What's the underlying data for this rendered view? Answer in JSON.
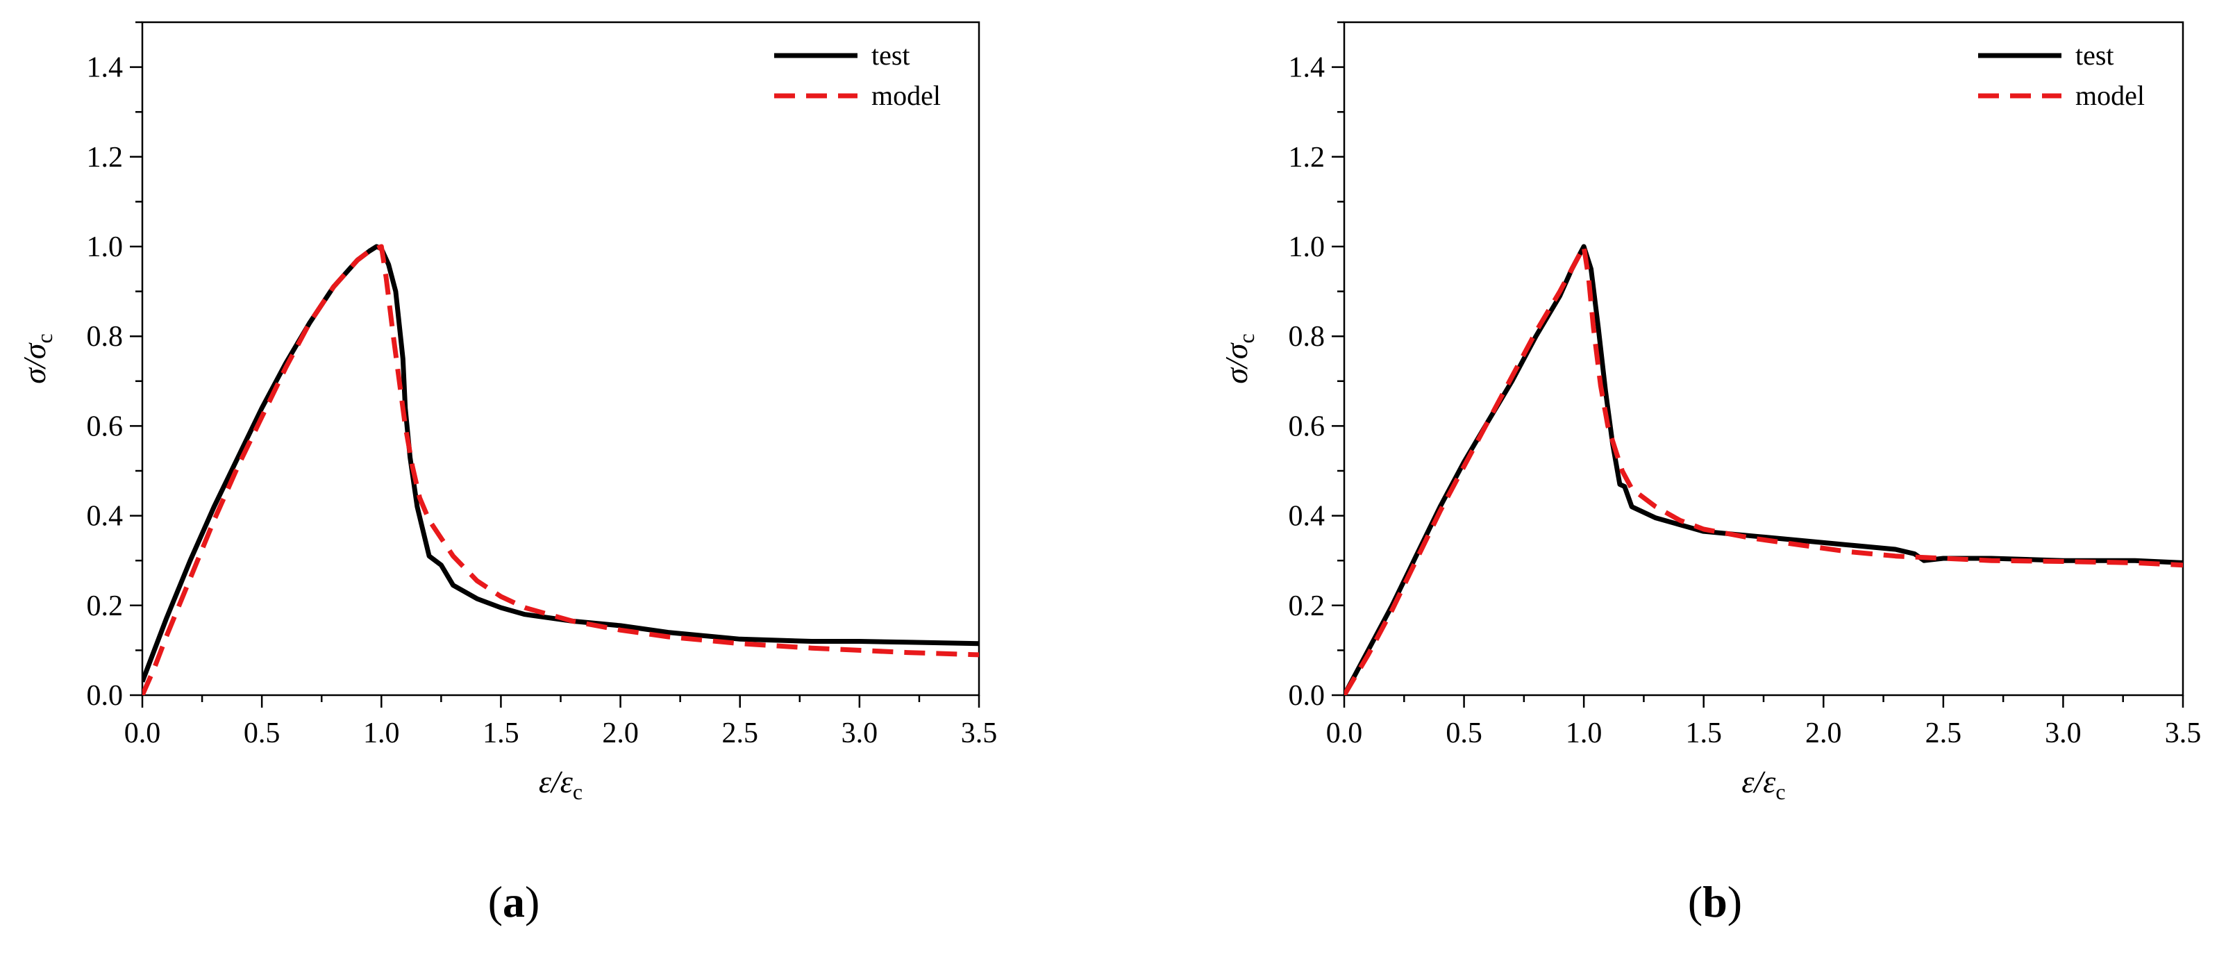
{
  "chart_data": [
    {
      "type": "line",
      "panel_label": "a",
      "xlabel": {
        "main": "ε/ε",
        "sub": "c"
      },
      "ylabel": {
        "main": "σ/σ",
        "sub": "c"
      },
      "xlim": [
        0,
        3.5
      ],
      "ylim": [
        0,
        1.5
      ],
      "xticks": [
        "0.0",
        "0.5",
        "1.0",
        "1.5",
        "2.0",
        "2.5",
        "3.0",
        "3.5"
      ],
      "yticks": [
        "0.0",
        "0.2",
        "0.4",
        "0.6",
        "0.8",
        "1.0",
        "1.2",
        "1.4"
      ],
      "legend_position": "top-right",
      "series": [
        {
          "name": "test",
          "color": "#000000",
          "style": "solid",
          "x": [
            0.0,
            0.05,
            0.1,
            0.2,
            0.3,
            0.4,
            0.5,
            0.6,
            0.7,
            0.8,
            0.9,
            0.95,
            0.98,
            1.0,
            1.03,
            1.06,
            1.09,
            1.1,
            1.12,
            1.15,
            1.2,
            1.25,
            1.3,
            1.4,
            1.5,
            1.6,
            1.8,
            2.0,
            2.2,
            2.5,
            2.8,
            3.0,
            3.2,
            3.5
          ],
          "y": [
            0.03,
            0.1,
            0.17,
            0.3,
            0.42,
            0.53,
            0.64,
            0.74,
            0.83,
            0.91,
            0.97,
            0.99,
            1.0,
            0.995,
            0.96,
            0.9,
            0.75,
            0.64,
            0.53,
            0.42,
            0.31,
            0.29,
            0.245,
            0.215,
            0.195,
            0.18,
            0.165,
            0.155,
            0.14,
            0.125,
            0.12,
            0.12,
            0.118,
            0.115
          ]
        },
        {
          "name": "model",
          "color": "#e8191b",
          "style": "dashed",
          "x": [
            0.0,
            0.05,
            0.1,
            0.2,
            0.3,
            0.4,
            0.5,
            0.6,
            0.7,
            0.8,
            0.9,
            0.95,
            1.0,
            1.02,
            1.05,
            1.08,
            1.1,
            1.13,
            1.16,
            1.2,
            1.3,
            1.4,
            1.5,
            1.6,
            1.8,
            2.0,
            2.2,
            2.5,
            2.8,
            3.0,
            3.2,
            3.5
          ],
          "y": [
            0.0,
            0.06,
            0.13,
            0.26,
            0.39,
            0.51,
            0.62,
            0.73,
            0.83,
            0.91,
            0.97,
            0.99,
            1.0,
            0.93,
            0.8,
            0.68,
            0.6,
            0.51,
            0.44,
            0.39,
            0.31,
            0.255,
            0.22,
            0.195,
            0.165,
            0.145,
            0.13,
            0.115,
            0.105,
            0.1,
            0.095,
            0.09
          ]
        }
      ]
    },
    {
      "type": "line",
      "panel_label": "b",
      "xlabel": {
        "main": "ε/ε",
        "sub": "c"
      },
      "ylabel": {
        "main": "σ/σ",
        "sub": "c"
      },
      "xlim": [
        0,
        3.5
      ],
      "ylim": [
        0,
        1.5
      ],
      "xticks": [
        "0.0",
        "0.5",
        "1.0",
        "1.5",
        "2.0",
        "2.5",
        "3.0",
        "3.5"
      ],
      "yticks": [
        "0.0",
        "0.2",
        "0.4",
        "0.6",
        "0.8",
        "1.0",
        "1.2",
        "1.4"
      ],
      "legend_position": "top-right",
      "series": [
        {
          "name": "test",
          "color": "#000000",
          "style": "solid",
          "x": [
            0.0,
            0.1,
            0.2,
            0.3,
            0.4,
            0.5,
            0.6,
            0.7,
            0.8,
            0.9,
            0.95,
            1.0,
            1.03,
            1.06,
            1.09,
            1.12,
            1.15,
            1.17,
            1.2,
            1.3,
            1.4,
            1.5,
            1.7,
            1.9,
            2.1,
            2.3,
            2.38,
            2.42,
            2.5,
            2.7,
            3.0,
            3.3,
            3.5
          ],
          "y": [
            0.0,
            0.1,
            0.2,
            0.31,
            0.42,
            0.52,
            0.61,
            0.7,
            0.8,
            0.89,
            0.95,
            1.0,
            0.95,
            0.82,
            0.68,
            0.56,
            0.47,
            0.465,
            0.42,
            0.395,
            0.38,
            0.365,
            0.355,
            0.345,
            0.335,
            0.325,
            0.315,
            0.3,
            0.305,
            0.305,
            0.3,
            0.3,
            0.295
          ]
        },
        {
          "name": "model",
          "color": "#e8191b",
          "style": "dashed",
          "x": [
            0.0,
            0.1,
            0.2,
            0.3,
            0.4,
            0.5,
            0.6,
            0.7,
            0.8,
            0.9,
            0.95,
            1.0,
            1.02,
            1.04,
            1.07,
            1.1,
            1.13,
            1.16,
            1.2,
            1.3,
            1.4,
            1.5,
            1.7,
            1.9,
            2.1,
            2.3,
            2.5,
            2.7,
            3.0,
            3.3,
            3.5
          ],
          "y": [
            0.0,
            0.09,
            0.19,
            0.3,
            0.41,
            0.51,
            0.61,
            0.71,
            0.81,
            0.9,
            0.95,
            1.0,
            0.93,
            0.82,
            0.69,
            0.6,
            0.55,
            0.5,
            0.46,
            0.42,
            0.39,
            0.37,
            0.35,
            0.335,
            0.32,
            0.31,
            0.305,
            0.3,
            0.298,
            0.295,
            0.29
          ]
        }
      ]
    }
  ]
}
